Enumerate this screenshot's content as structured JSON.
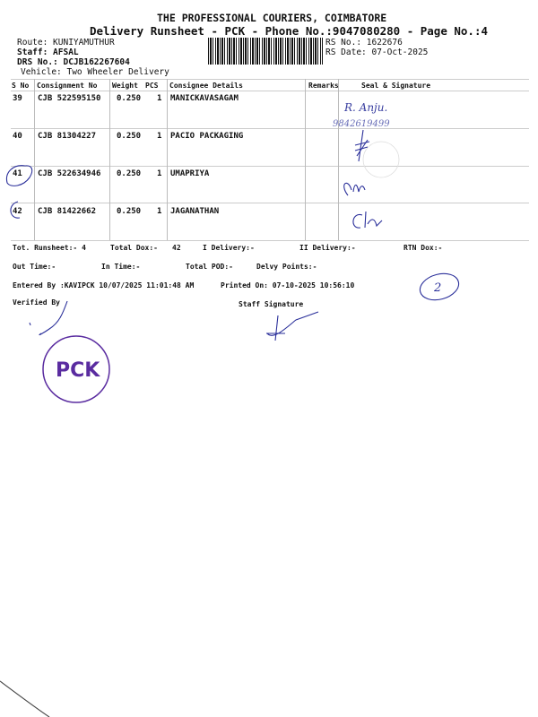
{
  "header": {
    "company": "THE PROFESSIONAL COURIERS, COIMBATORE",
    "subtitle": "Delivery Runsheet - PCK - Phone No.:9047080280 - Page No.:4",
    "route": "Route: KUNIYAMUTHUR",
    "staff": "Staff: AFSAL",
    "drs_no": "DRS No.: DCJB162267604",
    "vehicle": "Vehicle: Two Wheeler Delivery",
    "rs_no": "RS No.: 1622676",
    "rs_date": "RS Date: 07-Oct-2025"
  },
  "table": {
    "columns": [
      "S No",
      "Consignment No",
      "Weight",
      "PCS",
      "Consignee Details",
      "Remarks",
      "Seal & Signature"
    ],
    "rows": [
      {
        "sno": "39",
        "consignment": "CJB 522595150",
        "weight": "0.250",
        "pcs": "1",
        "consignee": "MANICKAVASAGAM",
        "remarks": ""
      },
      {
        "sno": "40",
        "consignment": "CJB 81304227",
        "weight": "0.250",
        "pcs": "1",
        "consignee": "PACIO PACKAGING",
        "remarks": ""
      },
      {
        "sno": "41",
        "consignment": "CJB 522634946",
        "weight": "0.250",
        "pcs": "1",
        "consignee": "UMAPRIYA",
        "remarks": ""
      },
      {
        "sno": "42",
        "consignment": "CJB 81422662",
        "weight": "0.250",
        "pcs": "1",
        "consignee": "JAGANATHAN",
        "remarks": ""
      }
    ]
  },
  "summary": {
    "tot_runsheet": "Tot. Runsheet:- 4",
    "total_dox": "Total Dox:-",
    "total_dox_value": "42",
    "i_delivery": "I Delivery:-",
    "ii_delivery": "II Delivery:-",
    "rtn_dox": "RTN Dox:-",
    "out_time": "Out Time:-",
    "in_time": "In Time:-",
    "total_pod": "Total POD:-",
    "delvy_points": "Delvy Points:-",
    "entered_by": "Entered By :KAVIPCK 10/07/2025 11:01:48 AM",
    "printed_on": "Printed On: 07-10-2025 10:56:10",
    "verified_by": "Verified By",
    "staff_signature": "Staff Signature"
  },
  "handwriting": {
    "row39_name": "R. Anju.",
    "row39_phone": "9842619499",
    "circled_number": "2"
  },
  "stamp": {
    "text": "PCK"
  },
  "colors": {
    "ink": "#2a2f9a",
    "stamp": "#5a2ca0",
    "text": "#111111"
  }
}
